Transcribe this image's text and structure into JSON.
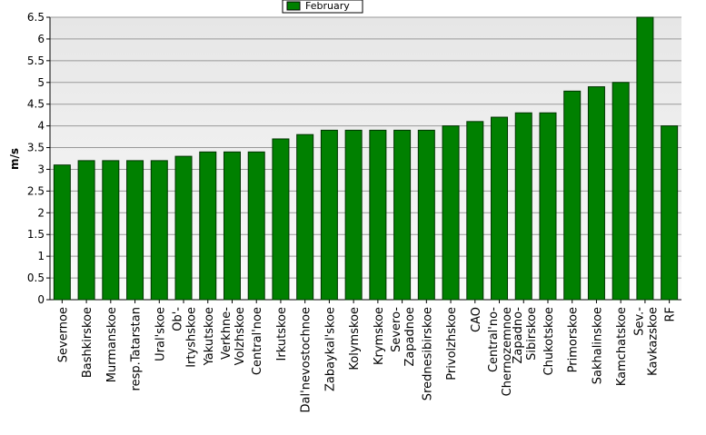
{
  "chart_data": {
    "type": "bar",
    "legend_label": "February",
    "y_label": "m/s",
    "categories": [
      "Severnoe",
      "Bashkirskoe",
      "Murmanskoe",
      "resp.Tatarstan",
      "Ural'skoe",
      "Ob'-\nIrtyshskoe",
      "Yakutskoe",
      "Verkhne-\nVolzhskoe",
      "Central'noe",
      "Irkutskoe",
      "Dal'nevostochnoe",
      "Zabaykal'skoe",
      "Kolymskoe",
      "Krymskoe",
      "Severo-\nZapadnoe",
      "Srednesibirskoe",
      "Privolzhskoe",
      "CAO",
      "Central'no-\nChernozemnoe",
      "Zapadno-\nSibirskoe",
      "Chukotskoe",
      "Primorskoe",
      "Sakhalinskoe",
      "Kamchatskoe",
      "Sev.-\nKavkazskoe",
      "RF"
    ],
    "values": [
      3.1,
      3.2,
      3.2,
      3.2,
      3.2,
      3.3,
      3.4,
      3.4,
      3.4,
      3.7,
      3.8,
      3.9,
      3.9,
      3.9,
      3.9,
      3.9,
      4.0,
      4.1,
      4.2,
      4.3,
      4.3,
      4.8,
      4.9,
      5.0,
      6.5,
      4.0
    ],
    "color": "#008000",
    "ylim": [
      0,
      6.5
    ],
    "yticks": [
      0,
      0.5,
      1,
      1.5,
      2,
      2.5,
      3,
      3.5,
      4,
      4.5,
      5,
      5.5,
      6,
      6.5
    ],
    "grid": true
  }
}
